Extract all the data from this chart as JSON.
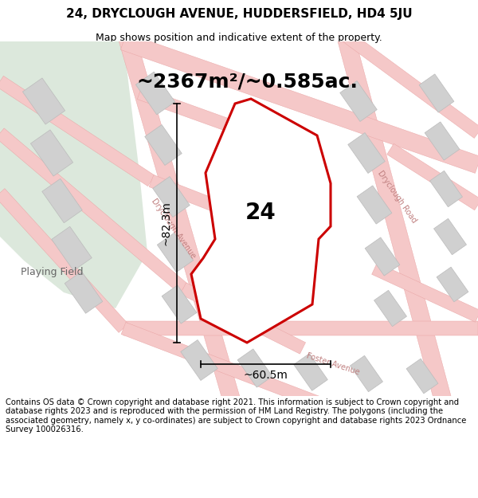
{
  "title": "24, DRYCLOUGH AVENUE, HUDDERSFIELD, HD4 5JU",
  "subtitle": "Map shows position and indicative extent of the property.",
  "footer": "Contains OS data © Crown copyright and database right 2021. This information is subject to Crown copyright and database rights 2023 and is reproduced with the permission of HM Land Registry. The polygons (including the associated geometry, namely x, y co-ordinates) are subject to Crown copyright and database rights 2023 Ordnance Survey 100026316.",
  "area_text": "~2367m²/~0.585ac.",
  "label_24": "24",
  "dim_height": "~82.3m",
  "dim_width": "~60.5m",
  "playing_field_label": "Playing Field",
  "road_label_dryclough_ave": "Dryclough Avenue",
  "road_label_dryclough_rd": "Dryclough Road",
  "road_label_foster": "Foster Avenue",
  "bg_color": "#ffffff",
  "map_bg": "#f2f2f2",
  "green_color": "#dce8dc",
  "road_color": "#f5c8c8",
  "road_edge_color": "#e8a0a0",
  "building_color": "#d0d0d0",
  "building_edge": "#bbbbbb",
  "property_fill": "#ffffff",
  "property_edge": "#cc0000",
  "title_fontsize": 11,
  "subtitle_fontsize": 9,
  "area_fontsize": 18,
  "label_fontsize": 20,
  "dim_fontsize": 10,
  "footer_fontsize": 7.2,
  "road_label_fontsize": 7,
  "playing_field_fontsize": 9
}
